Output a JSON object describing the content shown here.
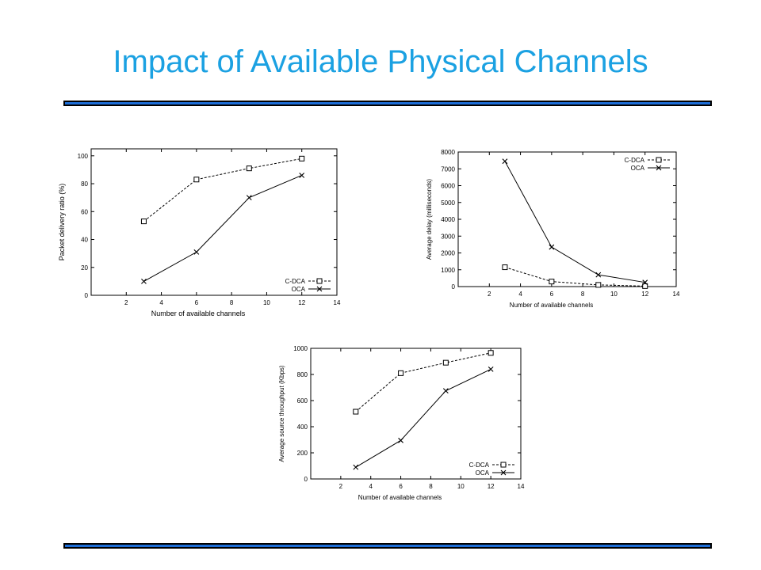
{
  "slide": {
    "title": "Impact of Available Physical Channels"
  },
  "chart_data": [
    {
      "type": "line",
      "xlabel": "Number of available channels",
      "ylabel": "Packet delivery ratio (%)",
      "xlim": [
        0,
        14
      ],
      "ylim": [
        0,
        105
      ],
      "xticks": [
        2,
        4,
        6,
        8,
        10,
        12,
        14
      ],
      "yticks": [
        0,
        20,
        40,
        60,
        80,
        100
      ],
      "legend_position": "bottom-right",
      "x": [
        3,
        6,
        9,
        12
      ],
      "series": [
        {
          "name": "C-DCA",
          "marker": "square",
          "dash": "dashed",
          "values": [
            53,
            83,
            91,
            98
          ]
        },
        {
          "name": "OCA",
          "marker": "x",
          "dash": "solid",
          "values": [
            10,
            31,
            70,
            86
          ]
        }
      ]
    },
    {
      "type": "line",
      "xlabel": "Number of available channels",
      "ylabel": "Average delay (milliseconds)",
      "xlim": [
        0,
        14
      ],
      "ylim": [
        0,
        8000
      ],
      "xticks": [
        2,
        4,
        6,
        8,
        10,
        12,
        14
      ],
      "yticks": [
        0,
        1000,
        2000,
        3000,
        4000,
        5000,
        6000,
        7000,
        8000
      ],
      "legend_position": "top-right",
      "x": [
        3,
        6,
        9,
        12
      ],
      "series": [
        {
          "name": "C-DCA",
          "marker": "square",
          "dash": "dashed",
          "values": [
            1150,
            300,
            100,
            30
          ]
        },
        {
          "name": "OCA",
          "marker": "x",
          "dash": "solid",
          "values": [
            7450,
            2350,
            700,
            250
          ]
        }
      ]
    },
    {
      "type": "line",
      "xlabel": "Number of available channels",
      "ylabel": "Average source throughput (Kbps)",
      "xlim": [
        0,
        14
      ],
      "ylim": [
        0,
        1000
      ],
      "xticks": [
        2,
        4,
        6,
        8,
        10,
        12,
        14
      ],
      "yticks": [
        0,
        200,
        400,
        600,
        800,
        1000
      ],
      "legend_position": "bottom-right",
      "x": [
        3,
        6,
        9,
        12
      ],
      "series": [
        {
          "name": "C-DCA",
          "marker": "square",
          "dash": "dashed",
          "values": [
            515,
            810,
            890,
            965
          ]
        },
        {
          "name": "OCA",
          "marker": "x",
          "dash": "solid",
          "values": [
            90,
            295,
            675,
            840
          ]
        }
      ]
    }
  ]
}
